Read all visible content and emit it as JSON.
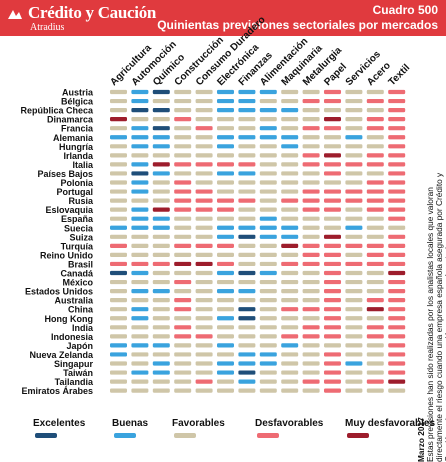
{
  "header": {
    "brand_name": "Crédito y Caución",
    "brand_sub": "Atradius",
    "chart_tag": "Cuadro 500",
    "title": "Quinientas previsiones sectoriales por mercados"
  },
  "note": {
    "date": "Marzo 2017",
    "text": "Estas previsiones han sido realizadas por los analistas locales que valoran directamente el riesgo cuando una empresa española asegurada por Crédito y Caución quiere cerrar una operación en un mercado exterior."
  },
  "legend": [
    {
      "label": "Excelentes",
      "level": 0
    },
    {
      "label": "Buenas",
      "level": 1
    },
    {
      "label": "Favorables",
      "level": 2
    },
    {
      "label": "Desfavorables",
      "level": 3
    },
    {
      "label": "Muy desfavorables",
      "level": 4
    }
  ],
  "colors": {
    "header": "#e03a3e",
    "levels": [
      "#1f4e79",
      "#3aa3de",
      "#cfc6a8",
      "#ee6b73",
      "#9d1d2c"
    ]
  },
  "chart_data": {
    "type": "heatmap",
    "levels": [
      "Excelentes",
      "Buenas",
      "Favorables",
      "Desfavorables",
      "Muy desfavorables"
    ],
    "sectors": [
      "Agricultura",
      "Automoción",
      "Químico",
      "Construcción",
      "Consumo Duradero",
      "Electrónica",
      "Finanzas",
      "Alimentación",
      "Maquinaria",
      "Metalurgia",
      "Papel",
      "Servicios",
      "Acero",
      "Textil"
    ],
    "countries": [
      "Austria",
      "Bélgica",
      "República Checa",
      "Dinamarca",
      "Francia",
      "Alemania",
      "Hungría",
      "Irlanda",
      "Italia",
      "Países Bajos",
      "Polonia",
      "Portugal",
      "Rusia",
      "Eslovaquia",
      "España",
      "Suecia",
      "Suiza",
      "Turquía",
      "Reino Unido",
      "Brasil",
      "Canadá",
      "México",
      "Estados Unidos",
      "Australia",
      "China",
      "Hong Kong",
      "India",
      "Indonesia",
      "Japón",
      "Nueva Zelanda",
      "Singapur",
      "Taiwán",
      "Tailandia",
      "Emiratos Árabes"
    ],
    "values": [
      [
        2,
        1,
        0,
        2,
        2,
        1,
        1,
        1,
        2,
        2,
        3,
        2,
        2,
        3
      ],
      [
        2,
        1,
        2,
        2,
        2,
        1,
        1,
        2,
        2,
        3,
        3,
        2,
        3,
        3
      ],
      [
        2,
        0,
        0,
        2,
        2,
        1,
        1,
        1,
        1,
        2,
        2,
        2,
        2,
        3
      ],
      [
        4,
        2,
        2,
        3,
        2,
        2,
        2,
        2,
        2,
        2,
        4,
        2,
        3,
        3
      ],
      [
        2,
        1,
        0,
        2,
        3,
        2,
        2,
        1,
        2,
        3,
        3,
        2,
        3,
        3
      ],
      [
        1,
        1,
        1,
        2,
        2,
        1,
        1,
        1,
        1,
        2,
        2,
        1,
        2,
        3
      ],
      [
        2,
        1,
        1,
        2,
        2,
        1,
        2,
        2,
        1,
        2,
        2,
        2,
        2,
        3
      ],
      [
        2,
        2,
        2,
        2,
        2,
        2,
        2,
        2,
        2,
        3,
        4,
        2,
        3,
        3
      ],
      [
        2,
        1,
        4,
        3,
        3,
        3,
        3,
        2,
        2,
        3,
        3,
        3,
        3,
        3
      ],
      [
        2,
        0,
        1,
        2,
        2,
        1,
        1,
        2,
        2,
        2,
        3,
        2,
        2,
        3
      ],
      [
        2,
        1,
        2,
        3,
        2,
        2,
        2,
        2,
        2,
        2,
        2,
        2,
        3,
        3
      ],
      [
        2,
        1,
        2,
        3,
        3,
        2,
        2,
        2,
        2,
        3,
        3,
        3,
        3,
        3
      ],
      [
        2,
        2,
        2,
        3,
        3,
        3,
        3,
        2,
        3,
        3,
        3,
        3,
        3,
        3
      ],
      [
        2,
        1,
        4,
        3,
        3,
        3,
        2,
        2,
        2,
        3,
        3,
        2,
        3,
        3
      ],
      [
        2,
        1,
        1,
        2,
        2,
        2,
        2,
        1,
        2,
        2,
        2,
        2,
        2,
        3
      ],
      [
        1,
        1,
        1,
        2,
        2,
        1,
        1,
        1,
        1,
        2,
        2,
        1,
        2,
        2
      ],
      [
        2,
        2,
        2,
        2,
        2,
        1,
        0,
        1,
        1,
        2,
        4,
        2,
        2,
        3
      ],
      [
        3,
        2,
        2,
        3,
        3,
        3,
        2,
        2,
        4,
        3,
        3,
        3,
        3,
        3
      ],
      [
        2,
        2,
        2,
        2,
        2,
        2,
        2,
        2,
        2,
        3,
        3,
        2,
        3,
        3
      ],
      [
        3,
        3,
        3,
        4,
        4,
        3,
        2,
        2,
        3,
        3,
        3,
        3,
        3,
        3
      ],
      [
        0,
        1,
        2,
        2,
        2,
        1,
        0,
        1,
        2,
        2,
        3,
        2,
        2,
        4
      ],
      [
        2,
        2,
        2,
        3,
        2,
        2,
        2,
        2,
        2,
        2,
        3,
        2,
        2,
        3
      ],
      [
        2,
        1,
        1,
        2,
        2,
        1,
        1,
        2,
        2,
        2,
        3,
        2,
        2,
        3
      ],
      [
        2,
        2,
        2,
        3,
        2,
        2,
        2,
        2,
        2,
        2,
        3,
        2,
        3,
        3
      ],
      [
        2,
        1,
        2,
        3,
        2,
        2,
        0,
        2,
        3,
        3,
        3,
        2,
        4,
        3
      ],
      [
        2,
        1,
        2,
        2,
        2,
        1,
        0,
        2,
        2,
        2,
        3,
        2,
        2,
        3
      ],
      [
        2,
        2,
        2,
        3,
        2,
        2,
        2,
        2,
        2,
        3,
        3,
        2,
        3,
        3
      ],
      [
        2,
        2,
        2,
        3,
        3,
        2,
        2,
        2,
        3,
        3,
        3,
        2,
        3,
        3
      ],
      [
        1,
        1,
        1,
        2,
        2,
        1,
        2,
        2,
        1,
        2,
        2,
        2,
        2,
        3
      ],
      [
        1,
        2,
        2,
        2,
        2,
        2,
        1,
        1,
        2,
        2,
        3,
        2,
        2,
        3
      ],
      [
        2,
        2,
        1,
        2,
        2,
        1,
        1,
        1,
        2,
        2,
        3,
        1,
        2,
        3
      ],
      [
        2,
        1,
        1,
        2,
        2,
        1,
        0,
        2,
        2,
        2,
        3,
        2,
        2,
        3
      ],
      [
        2,
        2,
        2,
        2,
        3,
        2,
        1,
        2,
        2,
        3,
        3,
        2,
        3,
        4
      ],
      [
        2,
        2,
        2,
        2,
        2,
        2,
        2,
        2,
        2,
        2,
        3,
        2,
        2,
        2
      ]
    ]
  }
}
